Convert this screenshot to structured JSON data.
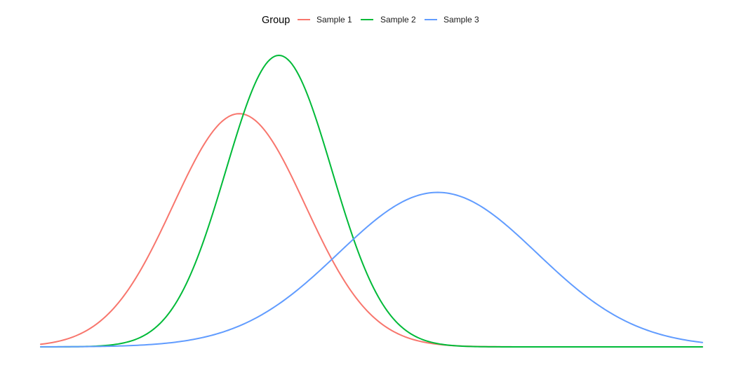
{
  "chart_data": {
    "type": "line",
    "title": "",
    "xlabel": "",
    "ylabel": "",
    "grid": false,
    "axes_visible": false,
    "legend_title": "Group",
    "legend_position": "top",
    "xlim": [
      -3,
      7
    ],
    "ylim": [
      0,
      1
    ],
    "series": [
      {
        "name": "Sample 1",
        "color": "#F8766D",
        "distribution": "normal",
        "mean": 0,
        "sd": 1.0,
        "peak_relative": 0.8
      },
      {
        "name": "Sample 2",
        "color": "#00BA38",
        "distribution": "normal",
        "mean": 0.6,
        "sd": 0.8,
        "peak_relative": 1.0
      },
      {
        "name": "Sample 3",
        "color": "#619CFF",
        "distribution": "normal",
        "mean": 3,
        "sd": 1.5,
        "peak_relative": 0.53
      }
    ]
  }
}
